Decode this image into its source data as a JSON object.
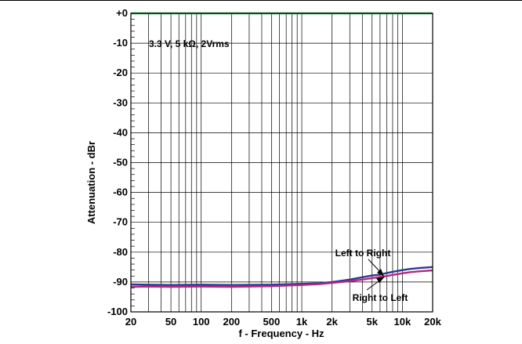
{
  "chart_data": {
    "type": "line",
    "xlabel": "f - Frequency - Hz",
    "ylabel": "Attenuation - dBr",
    "xscale": "log",
    "xlim": [
      20,
      20000
    ],
    "ylim": [
      -100,
      0
    ],
    "grid": true,
    "x_ticks": [
      20,
      50,
      100,
      200,
      500,
      1000,
      2000,
      5000,
      10000,
      20000
    ],
    "x_tick_labels": [
      "20",
      "50",
      "100",
      "200",
      "500",
      "1k",
      "2k",
      "5k",
      "10k",
      "20k"
    ],
    "y_ticks": [
      0,
      -10,
      -20,
      -30,
      -40,
      -50,
      -60,
      -70,
      -80,
      -90,
      -100
    ],
    "y_tick_labels": [
      "+0",
      "-10",
      "-20",
      "-30",
      "-40",
      "-50",
      "-60",
      "-70",
      "-80",
      "-90",
      "-100"
    ],
    "annotations": [
      "3.3 V, 5 kΩ, 2Vrms",
      "Left to Right",
      "Right to Left"
    ],
    "colors": {
      "reference": "#22b24c",
      "left_to_right": "#2b3a8f",
      "right_to_left": "#b5277f"
    },
    "series": [
      {
        "x": [
          20,
          20000
        ],
        "y": [
          0,
          0
        ]
      },
      {
        "name": "Left to Right",
        "x": [
          20,
          30,
          50,
          100,
          200,
          500,
          1000,
          1500,
          2000,
          3000,
          4000,
          5000,
          6000,
          7000,
          8000,
          10000,
          12000,
          15000,
          20000
        ],
        "y": [
          -90.8,
          -90.9,
          -91.0,
          -90.9,
          -91.0,
          -90.9,
          -90.6,
          -90.4,
          -90.0,
          -89.2,
          -88.4,
          -87.8,
          -87.5,
          -87.0,
          -86.6,
          -86.0,
          -85.6,
          -85.3,
          -85.0
        ]
      },
      {
        "name": "Right to Left",
        "x": [
          20,
          30,
          50,
          100,
          200,
          500,
          1000,
          1500,
          2000,
          3000,
          4000,
          5000,
          6000,
          7000,
          8000,
          10000,
          12000,
          15000,
          20000
        ],
        "y": [
          -91.6,
          -91.5,
          -91.6,
          -91.5,
          -91.6,
          -91.4,
          -91.0,
          -90.7,
          -90.3,
          -89.7,
          -89.2,
          -88.7,
          -88.3,
          -88.0,
          -87.6,
          -87.1,
          -86.7,
          -86.4,
          -86.1
        ]
      }
    ]
  }
}
